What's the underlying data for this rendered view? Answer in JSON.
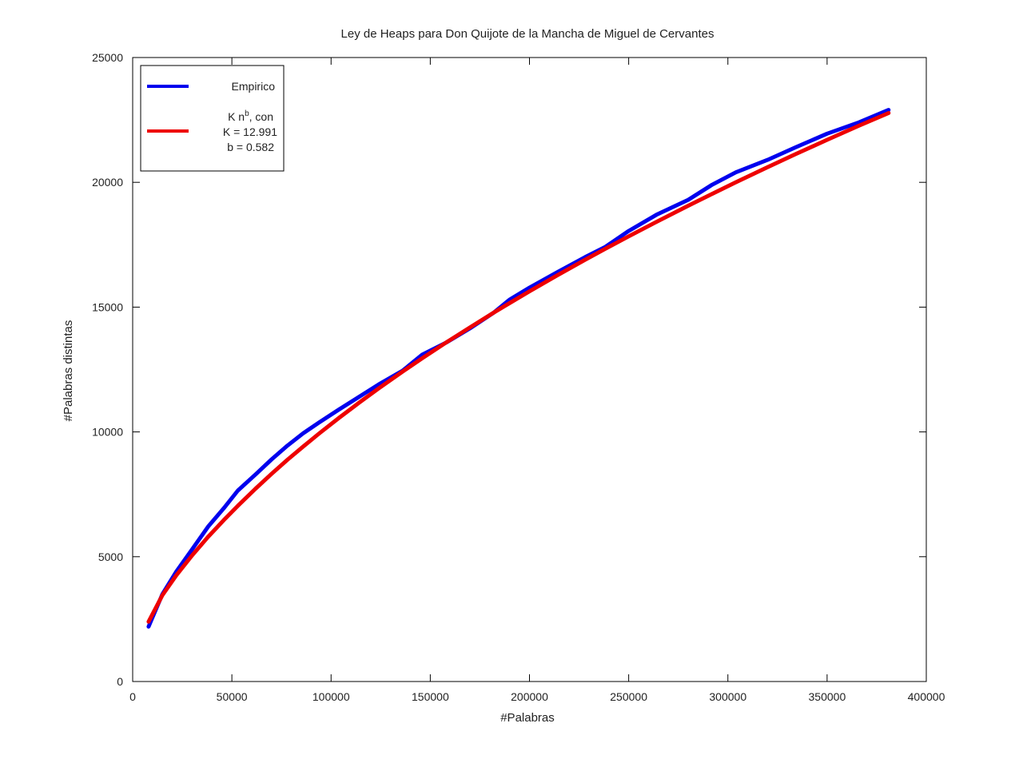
{
  "chart_data": {
    "type": "line",
    "title": "Ley de Heaps para Don Quijote de la Mancha de Miguel de Cervantes",
    "xlabel": "#Palabras",
    "ylabel": "#Palabras distintas",
    "xlim": [
      0,
      400000
    ],
    "ylim": [
      0,
      25000
    ],
    "x_ticks": [
      0,
      50000,
      100000,
      150000,
      200000,
      250000,
      300000,
      350000,
      400000
    ],
    "x_tick_labels": [
      "0",
      "50000",
      "100000",
      "150000",
      "200000",
      "250000",
      "300000",
      "350000",
      "400000"
    ],
    "y_ticks": [
      0,
      5000,
      10000,
      15000,
      20000,
      25000
    ],
    "y_tick_labels": [
      "0",
      "5000",
      "10000",
      "15000",
      "20000",
      "25000"
    ],
    "grid": false,
    "legend_position": "top-left",
    "series": [
      {
        "name": "Empirico",
        "color": "#0000ee",
        "x": [
          8000,
          15000,
          22000,
          30000,
          38000,
          46000,
          53000,
          62000,
          70000,
          78000,
          86000,
          94000,
          104000,
          114000,
          124000,
          136000,
          146000,
          158000,
          170000,
          182000,
          190000,
          200000,
          214000,
          228000,
          238000,
          250000,
          264000,
          280000,
          292000,
          304000,
          320000,
          334000,
          350000,
          366000,
          381000
        ],
        "y": [
          2200,
          3500,
          4400,
          5300,
          6200,
          6950,
          7650,
          8300,
          8900,
          9450,
          9950,
          10380,
          10900,
          11400,
          11900,
          12450,
          13100,
          13580,
          14150,
          14780,
          15300,
          15780,
          16400,
          17000,
          17400,
          18050,
          18700,
          19300,
          19900,
          20400,
          20900,
          21400,
          21950,
          22400,
          22900
        ]
      },
      {
        "name": "K n^b, con K = 12.991 b = 0.582",
        "legend_lines": [
          "K n",
          "b",
          ", con",
          "K = 12.991",
          "b = 0.582"
        ],
        "color": "#ee0000",
        "K": 12.991,
        "b": 0.582,
        "x": [
          8000,
          15000,
          22000,
          30000,
          38000,
          46000,
          53000,
          62000,
          70000,
          78000,
          86000,
          94000,
          104000,
          114000,
          124000,
          136000,
          146000,
          158000,
          170000,
          182000,
          190000,
          200000,
          214000,
          228000,
          238000,
          250000,
          264000,
          280000,
          292000,
          304000,
          320000,
          334000,
          350000,
          366000,
          381000
        ],
        "y": [
          2396,
          3457,
          4255,
          5058,
          5795,
          6472,
          7038,
          7732,
          8320,
          8882,
          9419,
          9938,
          10562,
          11162,
          11743,
          12414,
          12954,
          13581,
          14188,
          14778,
          15163,
          15633,
          16273,
          16894,
          17328,
          17836,
          18416,
          19063,
          19537,
          20003,
          20608,
          21126,
          21703,
          22267,
          22774
        ]
      }
    ]
  }
}
